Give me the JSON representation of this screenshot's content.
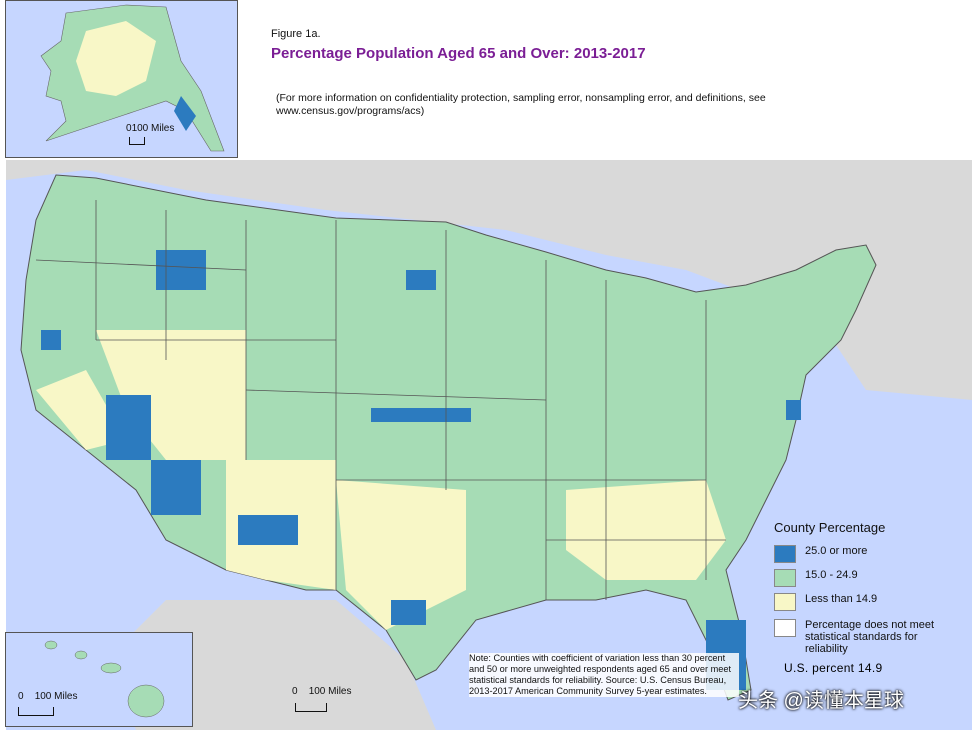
{
  "figure": {
    "label": "Figure 1a.",
    "title": "Percentage Population Aged 65 and Over: 2013-2017",
    "note": "(For more information on confidentiality protection, sampling error, nonsampling error, and definitions, see www.census.gov/programs/acs)"
  },
  "legend": {
    "title": "County Percentage",
    "items": [
      {
        "label": "25.0 or more",
        "color": "#2c7bbf"
      },
      {
        "label": "15.0 - 24.9",
        "color": "#a6dcb5"
      },
      {
        "label": "Less than 14.9",
        "color": "#f8f7c7"
      },
      {
        "label": "Percentage does not meet statistical standards for reliability",
        "color": "#ffffff"
      }
    ],
    "us_percent": "U.S. percent 14.9"
  },
  "source_note": "Note: Counties with coefficient of variation less than 30 percent and 50 or more unweighted respondents aged 65 and over meet statistical standards for reliability. Source: U.S. Census Bureau, 2013-2017 American Community Survey 5-year estimates.",
  "scales": {
    "alaska": {
      "zero": "0",
      "value": "100",
      "unit": "Miles"
    },
    "hawaii": {
      "zero": "0",
      "value": "100",
      "unit": "Miles"
    },
    "mainland": {
      "zero": "0",
      "value": "100",
      "unit": "Miles"
    }
  },
  "watermark": "头条 @读懂本星球",
  "colors": {
    "water": "#c6d6ff",
    "land_outside": "#d9d9d9",
    "high": "#2c7bbf",
    "mid": "#a6dcb5",
    "low": "#f8f7c7"
  }
}
